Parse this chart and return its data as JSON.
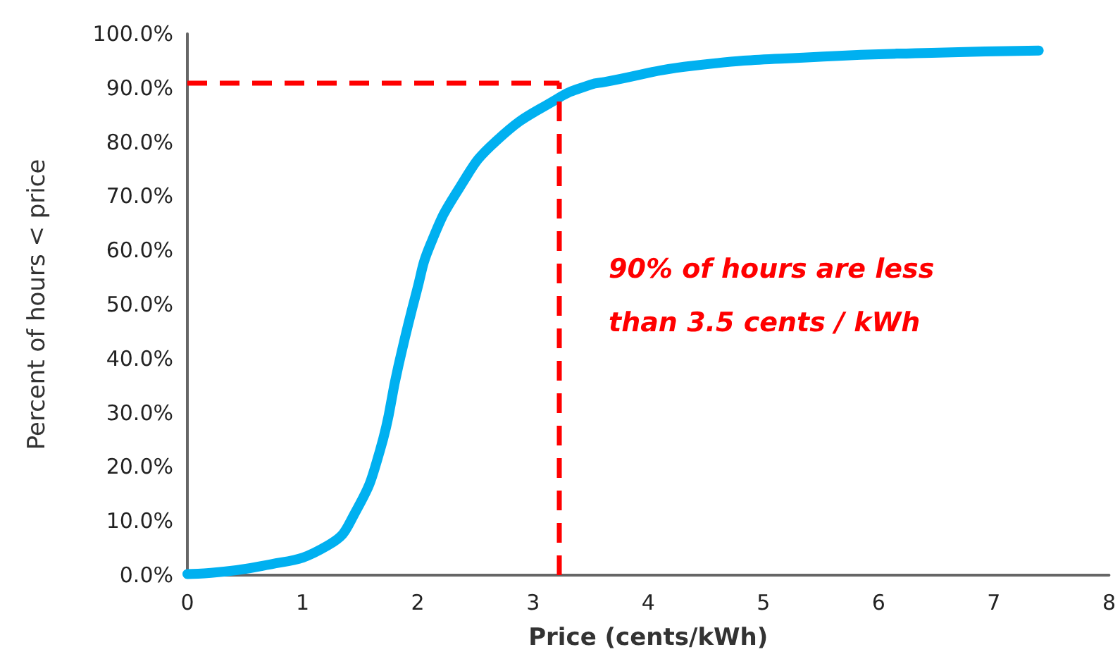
{
  "chart_data": {
    "type": "line",
    "xlabel": "Price (cents/kWh)",
    "ylabel": "Percent of hours < price",
    "x": [
      0,
      0.65,
      1.22,
      1.46,
      1.67,
      1.83,
      1.99,
      2.11,
      2.36,
      2.68,
      3.21,
      3.5,
      3.62,
      4.39,
      5.52,
      6.46,
      7.39
    ],
    "series": [
      {
        "color": "#00b0f0",
        "values": [
          0.2,
          1.7,
          5.5,
          11.7,
          22.9,
          38.5,
          52.4,
          61.1,
          71.5,
          80.2,
          88,
          90.6,
          91.1,
          94.1,
          95.8,
          96.5,
          96.9
        ]
      }
    ],
    "xlim": [
      0,
      8
    ],
    "xticks": [
      0,
      1,
      2,
      3,
      4,
      5,
      6,
      7,
      8
    ],
    "ylim": [
      0,
      100
    ],
    "yticks": [
      {
        "value": 0,
        "label": "0.0%"
      },
      {
        "value": 10,
        "label": "10.0%"
      },
      {
        "value": 20,
        "label": "20.0%"
      },
      {
        "value": 30,
        "label": "30.0%"
      },
      {
        "value": 40,
        "label": "40.0%"
      },
      {
        "value": 50,
        "label": "50.0%"
      },
      {
        "value": 60,
        "label": "60.0%"
      },
      {
        "value": 70,
        "label": "70.0%"
      },
      {
        "value": 80,
        "label": "80.0%"
      },
      {
        "value": 90,
        "label": "90.0%"
      },
      {
        "value": 100,
        "label": "100.0%"
      }
    ],
    "ref_lines": [
      {
        "axis": "x",
        "value": 3.23,
        "color": "#ff0000",
        "line_style": "dashed"
      },
      {
        "axis": "y",
        "value": 91,
        "color": "#ff0000",
        "line_style": "dashed"
      }
    ],
    "annotations": [
      "90% of hours are less\nthan 3.5 cents / kWh"
    ],
    "grid": false,
    "line_style": "solid"
  }
}
